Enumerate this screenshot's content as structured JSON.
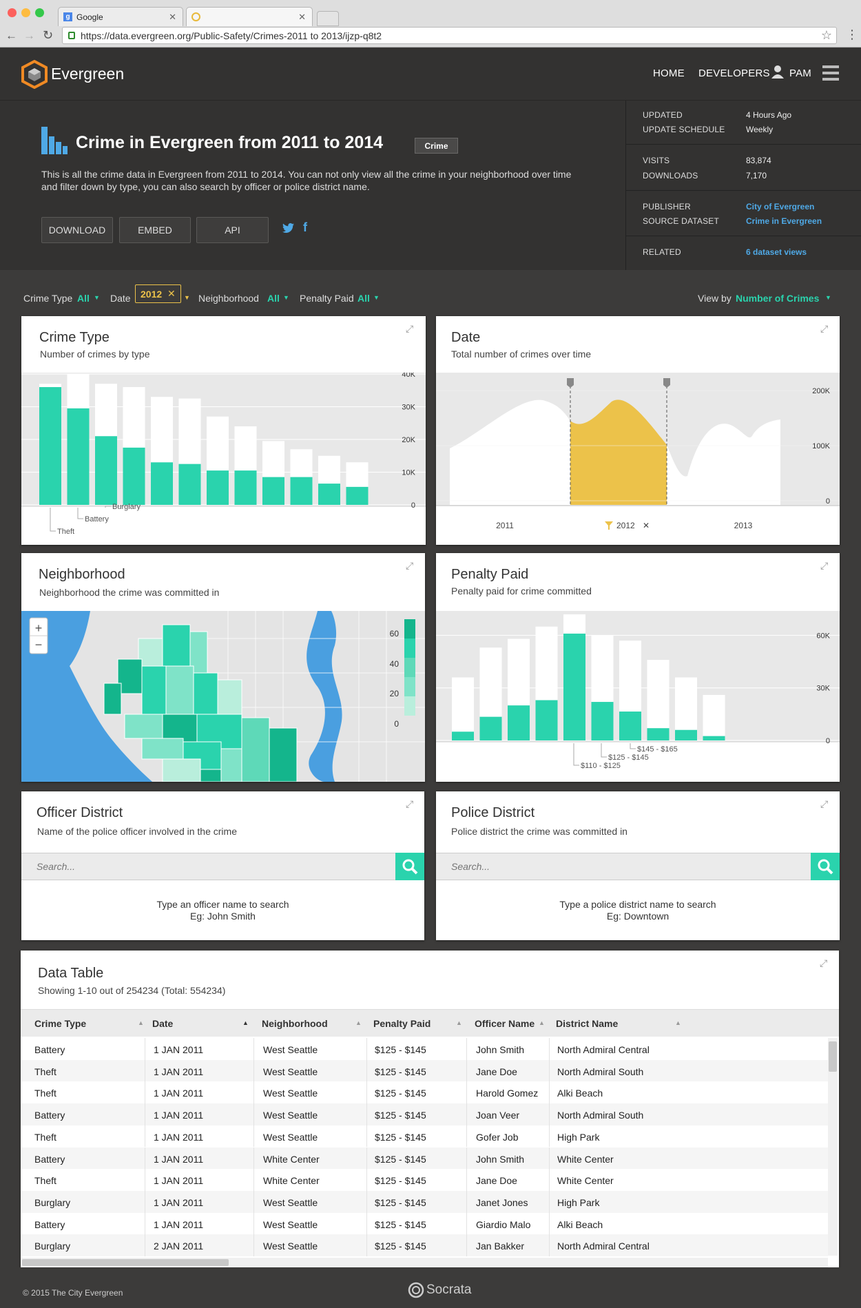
{
  "browser": {
    "tabs": [
      {
        "label": "Google"
      },
      {
        "label": ""
      }
    ],
    "url": "https://data.evergreen.org/Public-Safety/Crimes-2011 to 2013/ijzp-q8t2"
  },
  "app": {
    "brand": "Evergreen",
    "nav": [
      {
        "label": "HOME"
      },
      {
        "label": "DEVELOPERS"
      },
      {
        "label": "PAM"
      }
    ]
  },
  "dataset": {
    "title": "Crime in Evergreen from 2011 to 2014",
    "tag": "Crime",
    "description": "This is all the crime data in Evergreen from 2011 to 2014. You can not only view all the crime in your neighborhood over time and filter down by type, you can also search by officer or police district name.",
    "buttons": [
      "DOWNLOAD",
      "EMBED",
      "API"
    ]
  },
  "meta": {
    "updated_label": "UPDATED",
    "updated": "4 Hours Ago",
    "schedule_label": "UPDATE SCHEDULE",
    "schedule": "Weekly",
    "visits_label": "VISITS",
    "visits": "83,874",
    "downloads_label": "DOWNLOADS",
    "downloads": "7,170",
    "publisher_label": "PUBLISHER",
    "publisher": "City of Evergreen",
    "source_label": "SOURCE DATASET",
    "source": "Crime in Evergreen",
    "related_label": "RELATED",
    "related": "6 dataset views"
  },
  "filters": {
    "crime_type_label": "Crime Type",
    "crime_type": "All",
    "date_label": "Date",
    "date": "2012",
    "neighborhood_label": "Neighborhood",
    "neighborhood": "All",
    "penalty_label": "Penalty Paid",
    "penalty": "All",
    "viewby_label": "View by",
    "viewby": "Number of Crimes"
  },
  "cards": {
    "crime_type": {
      "title": "Crime Type",
      "subtitle": "Number of crimes by type"
    },
    "date": {
      "title": "Date",
      "subtitle": "Total number of crimes over time"
    },
    "neighborhood": {
      "title": "Neighborhood",
      "subtitle": "Neighborhood the crime was committed in"
    },
    "penalty": {
      "title": "Penalty Paid",
      "subtitle": "Penalty paid for crime committed"
    },
    "officer": {
      "title": "Officer District",
      "subtitle": "Name of the police officer involved in the crime",
      "placeholder": "Search...",
      "hint1": "Type an officer name to search",
      "hint2": "Eg: John Smith"
    },
    "district": {
      "title": "Police District",
      "subtitle": "Police district the crime was committed in",
      "placeholder": "Search...",
      "hint1": "Type a police district name to search",
      "hint2": "Eg: Downtown"
    }
  },
  "map": {
    "zoom_in": "+",
    "zoom_out": "−",
    "legend_ticks": [
      "60",
      "40",
      "20",
      "0"
    ]
  },
  "chart_data": [
    {
      "type": "bar",
      "name": "crime_type",
      "ylim": [
        0,
        40000
      ],
      "yticks": [
        "40K",
        "30K",
        "20K",
        "10K",
        "0"
      ],
      "total": [
        37000,
        40000,
        37000,
        36000,
        33000,
        32500,
        27000,
        24000,
        19500,
        17000,
        15000,
        13000
      ],
      "filtered": [
        36000,
        29500,
        21000,
        17500,
        13000,
        12500,
        10500,
        10500,
        8500,
        8500,
        6500,
        5500
      ],
      "labels": [
        "Theft",
        "Battery",
        "Burglary"
      ]
    },
    {
      "type": "area",
      "name": "date",
      "ylim": [
        0,
        240000
      ],
      "yticks": [
        "200K",
        "100K",
        "0"
      ],
      "xticks": [
        "2011",
        "2012",
        "2013"
      ],
      "selected": "2012"
    },
    {
      "type": "bar",
      "name": "penalty",
      "ylim": [
        0,
        70000
      ],
      "yticks": [
        "60K",
        "30K",
        "0"
      ],
      "total": [
        36000,
        53000,
        58000,
        65000,
        72000,
        60000,
        57000,
        46000,
        36000,
        26000
      ],
      "filtered": [
        5000,
        13500,
        20000,
        23000,
        61000,
        22000,
        16500,
        7000,
        6000,
        2500
      ],
      "labels": [
        "$145 - $165",
        "$125 - $145",
        "$110 - $125"
      ]
    }
  ],
  "table": {
    "title": "Data Table",
    "subtitle": "Showing 1-10 out of 254234 (Total: 554234)",
    "columns": [
      "Crime Type",
      "Date",
      "Neighborhood",
      "Penalty Paid",
      "Officer Name",
      "District Name"
    ],
    "rows": [
      [
        "Battery",
        "1 JAN 2011",
        "West Seattle",
        "$125 - $145",
        "John Smith",
        "North Admiral Central"
      ],
      [
        "Theft",
        "1 JAN 2011",
        "West Seattle",
        "$125 - $145",
        "Jane Doe",
        "North Admiral South"
      ],
      [
        "Theft",
        "1 JAN 2011",
        "West Seattle",
        "$125 - $145",
        "Harold Gomez",
        "Alki Beach"
      ],
      [
        "Battery",
        "1 JAN 2011",
        "West Seattle",
        "$125 - $145",
        "Joan Veer",
        "North Admiral South"
      ],
      [
        "Theft",
        "1 JAN 2011",
        "West Seattle",
        "$125 - $145",
        "Gofer Job",
        "High Park"
      ],
      [
        "Battery",
        "1 JAN 2011",
        "White Center",
        "$125 - $145",
        "John Smith",
        "White Center"
      ],
      [
        "Theft",
        "1 JAN 2011",
        "White Center",
        "$125 - $145",
        "Jane Doe",
        "White Center"
      ],
      [
        "Burglary",
        "1 JAN 2011",
        "West Seattle",
        "$125 - $145",
        "Janet Jones",
        "High Park"
      ],
      [
        "Battery",
        "1 JAN 2011",
        "West Seattle",
        "$125 - $145",
        "Giardio Malo",
        "Alki Beach"
      ],
      [
        "Burglary",
        "2 JAN 2011",
        "West Seattle",
        "$125 - $145",
        "Jan Bakker",
        "North Admiral Central"
      ]
    ]
  },
  "footer": {
    "copyright": "© 2015 The City Evergreen",
    "brand": "Socrata"
  },
  "colors": {
    "accent": "#2ad3ad",
    "selected": "#ecc24a",
    "link": "#4fa9e6",
    "water": "#4a9fe0"
  }
}
